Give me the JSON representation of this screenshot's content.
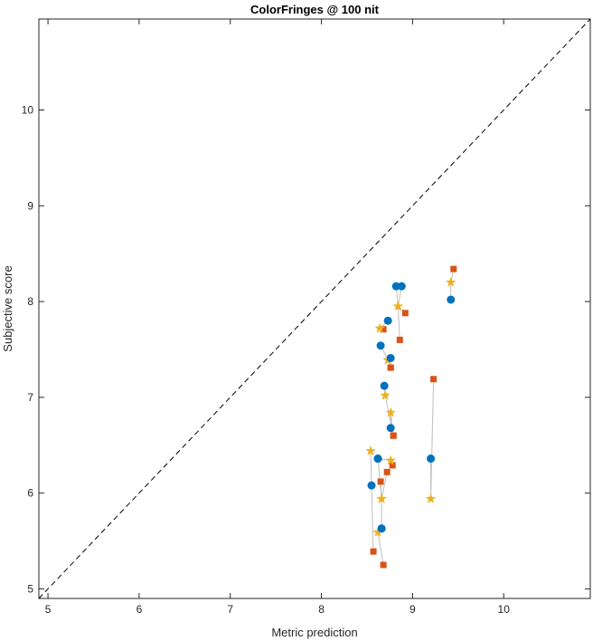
{
  "chart_data": {
    "type": "scatter",
    "title": "ColorFringes @ 100 nit",
    "xlabel": "Metric prediction",
    "ylabel": "Subjective score",
    "xlim": [
      4.9,
      10.95
    ],
    "ylim": [
      4.9,
      10.95
    ],
    "xticks": [
      5,
      6,
      7,
      8,
      9,
      10
    ],
    "yticks": [
      5,
      6,
      7,
      8,
      9,
      10
    ],
    "reference_line": "y = x (dashed)",
    "grid": false,
    "colors": {
      "circle": "#0072BD",
      "square": "#D95319",
      "star": "#EDB120",
      "connector": "#bfbfbf"
    },
    "groups": [
      {
        "circle": [
          8.82,
          8.16
        ],
        "star": [
          8.84,
          7.95
        ],
        "square": [
          8.92,
          7.88
        ]
      },
      {
        "circle": [
          8.88,
          8.16
        ],
        "star": [
          8.84,
          7.95
        ],
        "square": [
          8.86,
          7.6
        ]
      },
      {
        "circle": [
          9.42,
          8.02
        ],
        "star": [
          9.42,
          8.2
        ],
        "square": [
          9.45,
          8.34
        ]
      },
      {
        "circle": [
          8.73,
          7.8
        ],
        "star": [
          8.64,
          7.72
        ],
        "square": [
          8.68,
          7.71
        ]
      },
      {
        "circle": [
          8.65,
          7.54
        ],
        "star": [
          8.73,
          7.39
        ],
        "square": [
          8.76,
          7.31
        ]
      },
      {
        "circle": [
          8.76,
          7.41
        ],
        "star": [
          8.73,
          7.39
        ],
        "square": [
          8.76,
          7.31
        ]
      },
      {
        "circle": [
          8.69,
          7.12
        ],
        "star": [
          8.7,
          7.02
        ],
        "square": [
          8.79,
          6.6
        ]
      },
      {
        "circle": [
          8.76,
          6.68
        ],
        "star": [
          8.76,
          6.84
        ],
        "square": [
          8.79,
          6.6
        ]
      },
      {
        "circle": [
          9.2,
          6.36
        ],
        "star": [
          9.2,
          5.94
        ],
        "square": [
          9.23,
          7.19
        ]
      },
      {
        "circle": [
          8.62,
          6.36
        ],
        "star": [
          8.76,
          6.34
        ],
        "square": [
          8.78,
          6.29
        ]
      },
      {
        "circle": [
          8.55,
          6.08
        ],
        "star": [
          8.54,
          6.44
        ],
        "square": [
          8.57,
          5.39
        ]
      },
      {
        "circle": [
          8.66,
          5.63
        ],
        "star": [
          8.66,
          5.94
        ],
        "square": [
          8.72,
          6.22
        ]
      },
      {
        "circle": [
          8.66,
          5.63
        ],
        "star": [
          8.62,
          5.59
        ],
        "square": [
          8.68,
          5.25
        ]
      },
      {
        "circle": [
          8.62,
          6.36
        ],
        "star": [
          8.66,
          5.94
        ],
        "square": [
          8.65,
          6.12
        ]
      }
    ]
  }
}
